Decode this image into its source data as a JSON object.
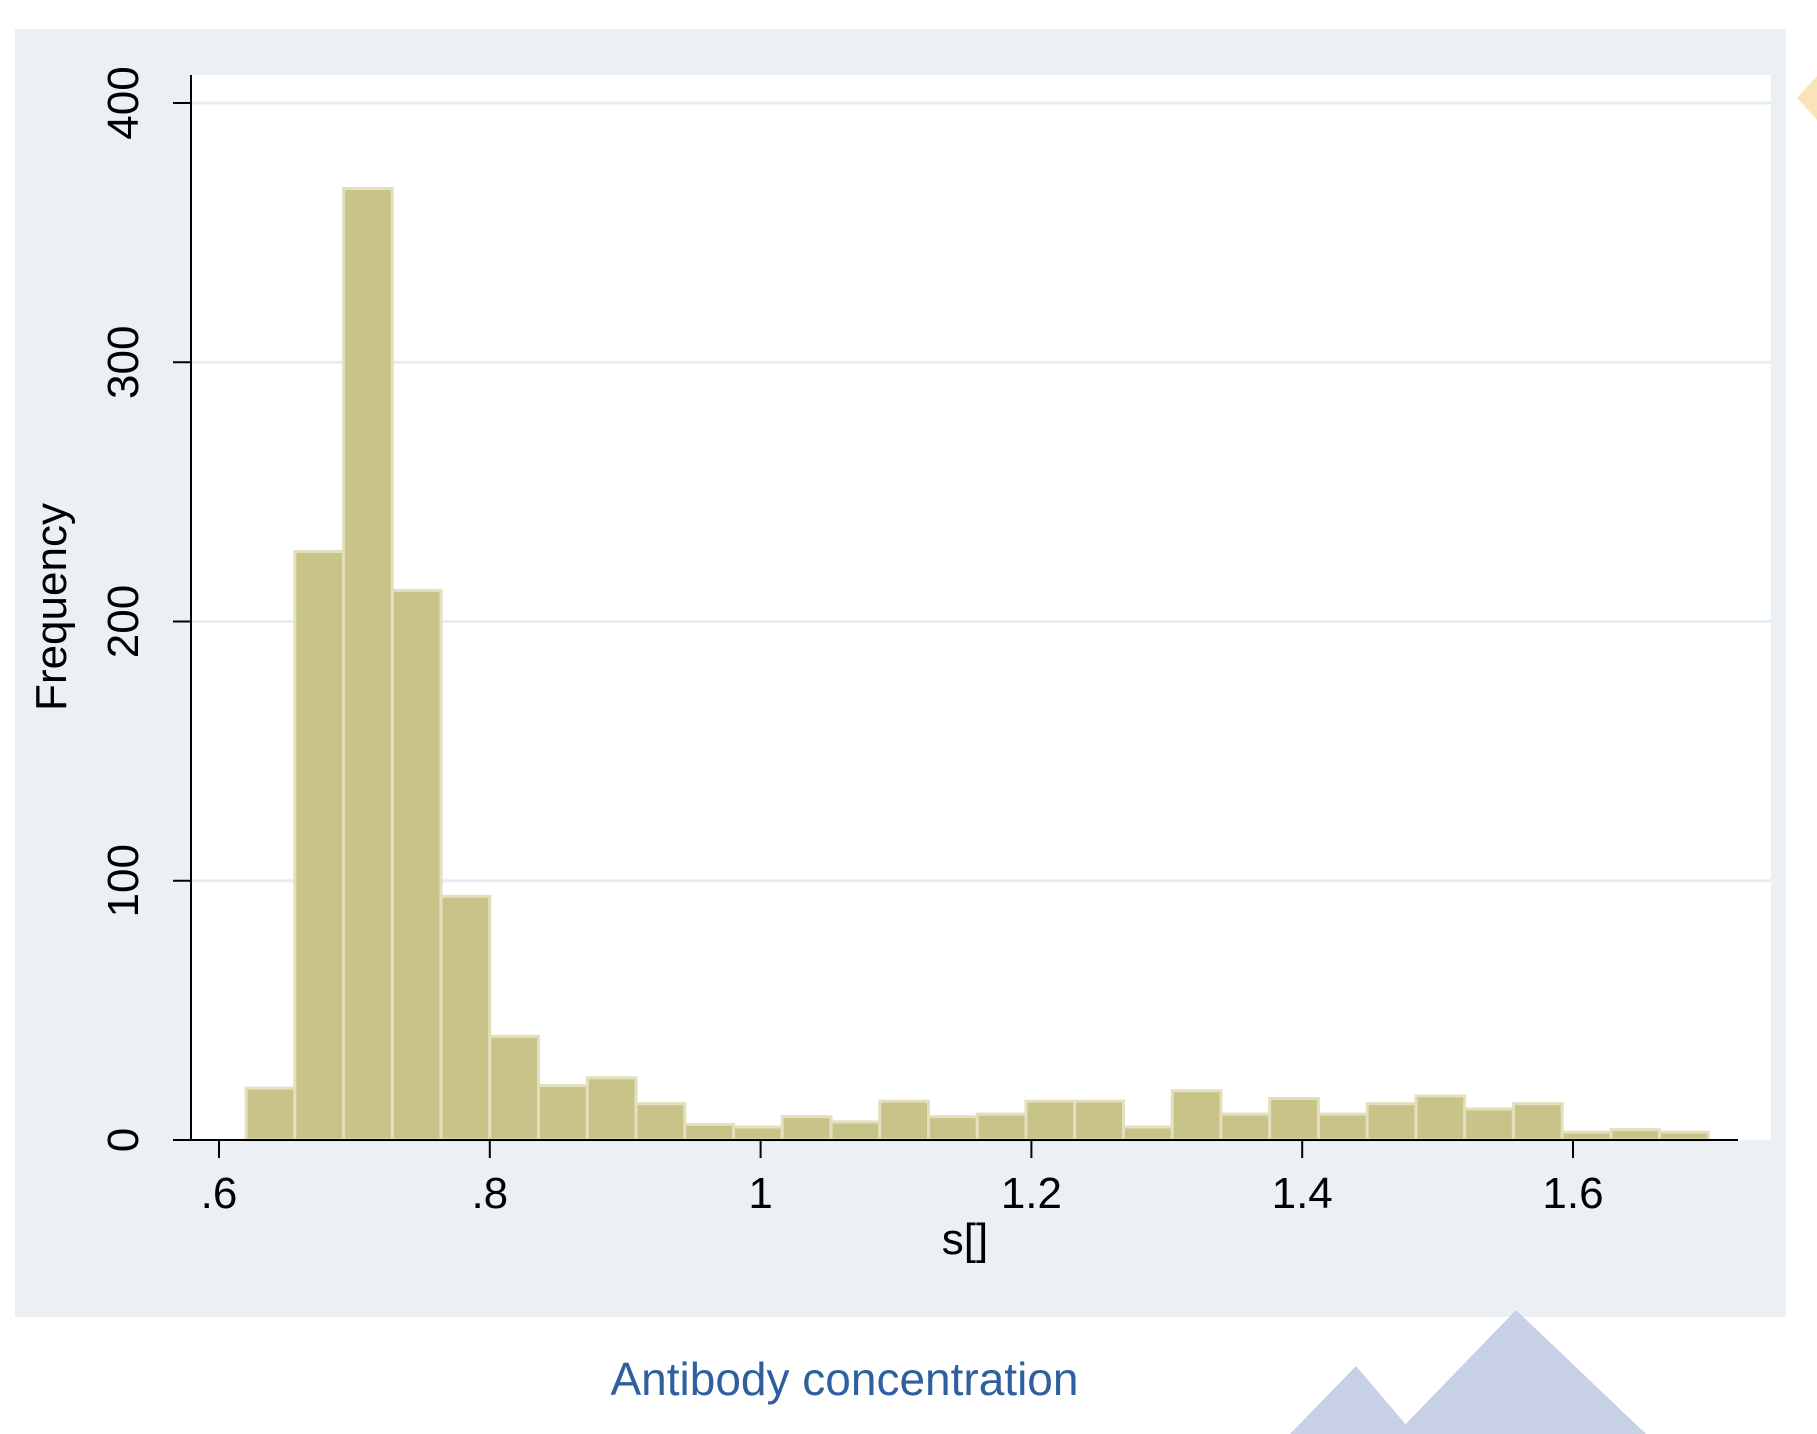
{
  "colors": {
    "panel_bg": "#eaf0f3",
    "plot_bg": "#ffffff",
    "bar_fill": "#c8c388",
    "bar_stroke": "#e3e0bd",
    "grid": "#e6eef1",
    "axis": "#000000",
    "caption": "#2f5f9f",
    "deco_triangle": "#c8d0e8",
    "deco_diamond": "#fbe3b8"
  },
  "caption": "Antibody concentration",
  "chart_data": {
    "type": "bar",
    "subtype": "histogram",
    "title": "",
    "xlabel": "s[]",
    "ylabel": "Frequency",
    "xlim": [
      0.58,
      1.72
    ],
    "ylim": [
      0,
      400
    ],
    "xticks": [
      0.6,
      0.8,
      1.0,
      1.2,
      1.4,
      1.6
    ],
    "xtick_labels": [
      ".6",
      ".8",
      "1",
      "1.2",
      "1.4",
      "1.6"
    ],
    "yticks": [
      0,
      100,
      200,
      300,
      400
    ],
    "ytick_labels": [
      "0",
      "100",
      "200",
      "300",
      "400"
    ],
    "grid": "horizontal",
    "bin_start": 0.62,
    "bin_width": 0.036,
    "values": [
      20,
      227,
      367,
      212,
      94,
      40,
      21,
      24,
      14,
      6,
      5,
      9,
      7,
      15,
      9,
      10,
      15,
      15,
      5,
      19,
      10,
      16,
      10,
      14,
      17,
      12,
      14,
      3,
      4,
      3
    ]
  }
}
